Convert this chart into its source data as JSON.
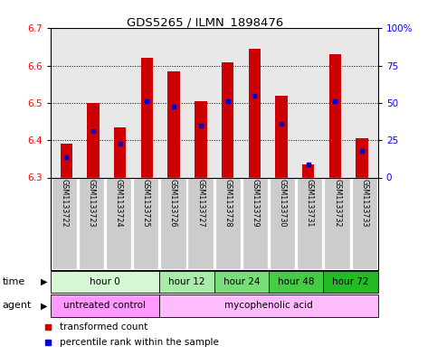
{
  "title": "GDS5265 / ILMN_1898476",
  "samples": [
    "GSM1133722",
    "GSM1133723",
    "GSM1133724",
    "GSM1133725",
    "GSM1133726",
    "GSM1133727",
    "GSM1133728",
    "GSM1133729",
    "GSM1133730",
    "GSM1133731",
    "GSM1133732",
    "GSM1133733"
  ],
  "bar_bottoms": [
    6.3,
    6.3,
    6.3,
    6.3,
    6.3,
    6.3,
    6.3,
    6.3,
    6.3,
    6.3,
    6.3,
    6.3
  ],
  "bar_tops": [
    6.39,
    6.5,
    6.435,
    6.622,
    6.585,
    6.505,
    6.61,
    6.645,
    6.52,
    6.335,
    6.63,
    6.405
  ],
  "percentile_values": [
    6.355,
    6.425,
    6.39,
    6.505,
    6.49,
    6.44,
    6.505,
    6.52,
    6.445,
    6.335,
    6.505,
    6.372
  ],
  "ylim_left": [
    6.3,
    6.7
  ],
  "ylim_right": [
    0,
    100
  ],
  "yticks_left": [
    6.3,
    6.4,
    6.5,
    6.6,
    6.7
  ],
  "yticks_right": [
    0,
    25,
    50,
    75,
    100
  ],
  "ytick_labels_right": [
    "0",
    "25",
    "50",
    "75",
    "100%"
  ],
  "bar_color": "#cc0000",
  "percentile_color": "#0000cc",
  "plot_bg": "#e8e8e8",
  "time_groups": [
    {
      "label": "hour 0",
      "start": 0,
      "end": 4,
      "color": "#d4f7d4"
    },
    {
      "label": "hour 12",
      "start": 4,
      "end": 6,
      "color": "#aaeaaa"
    },
    {
      "label": "hour 24",
      "start": 6,
      "end": 8,
      "color": "#77dd77"
    },
    {
      "label": "hour 48",
      "start": 8,
      "end": 10,
      "color": "#44cc44"
    },
    {
      "label": "hour 72",
      "start": 10,
      "end": 12,
      "color": "#22bb22"
    }
  ],
  "agent_groups": [
    {
      "label": "untreated control",
      "start": 0,
      "end": 4,
      "color": "#ff99ff"
    },
    {
      "label": "mycophenolic acid",
      "start": 4,
      "end": 12,
      "color": "#ffbbff"
    }
  ],
  "legend_red": "transformed count",
  "legend_blue": "percentile rank within the sample"
}
